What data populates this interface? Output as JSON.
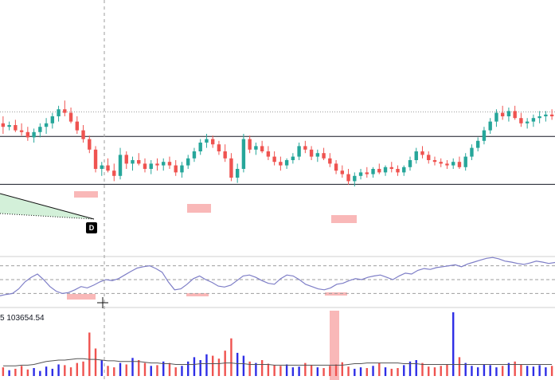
{
  "volume_label": "5  103654.54",
  "drawing_marker": "D",
  "colors": {
    "up": "#26a69a",
    "down": "#ef5350",
    "level_line": "#131722",
    "dotted_line": "#9e9e9e",
    "oscillator": "#7e7ec7",
    "vol_up": "#2e2ee6",
    "vol_down": "#ef5350",
    "vol_ma": "#555555",
    "highlight": "#f7a6a6",
    "wedge_fill": "#c8ecd0"
  },
  "chart_data": {
    "type": "candlestick",
    "title": "",
    "price": {
      "ylim": [
        0,
        100
      ],
      "levels": [
        {
          "style": "solid",
          "value": 58.5
        },
        {
          "style": "solid",
          "value": 31.2
        },
        {
          "style": "dotted",
          "value": 72.5
        }
      ],
      "candles": [
        [
          66,
          70,
          60,
          64
        ],
        [
          64,
          67,
          62,
          65
        ],
        [
          65,
          68,
          61,
          62
        ],
        [
          62,
          66,
          59,
          61
        ],
        [
          61,
          64,
          56,
          58
        ],
        [
          58,
          63,
          55,
          61
        ],
        [
          61,
          66,
          58,
          64
        ],
        [
          64,
          69,
          60,
          66
        ],
        [
          66,
          72,
          63,
          70
        ],
        [
          70,
          76,
          67,
          74
        ],
        [
          74,
          79,
          70,
          72
        ],
        [
          72,
          75,
          66,
          67
        ],
        [
          67,
          70,
          60,
          62
        ],
        [
          62,
          65,
          55,
          57
        ],
        [
          57,
          59,
          49,
          51
        ],
        [
          51,
          53,
          38,
          40
        ],
        [
          40,
          44,
          36,
          42
        ],
        [
          42,
          46,
          38,
          39
        ],
        [
          39,
          43,
          33,
          36
        ],
        [
          36,
          52,
          34,
          48
        ],
        [
          48,
          50,
          40,
          43
        ],
        [
          43,
          47,
          39,
          45
        ],
        [
          45,
          49,
          42,
          43
        ],
        [
          43,
          46,
          38,
          40
        ],
        [
          40,
          45,
          37,
          43
        ],
        [
          43,
          46,
          39,
          42
        ],
        [
          42,
          46,
          39,
          44
        ],
        [
          44,
          47,
          40,
          42
        ],
        [
          42,
          45,
          36,
          38
        ],
        [
          38,
          44,
          35,
          42
        ],
        [
          42,
          48,
          40,
          46
        ],
        [
          46,
          52,
          44,
          50
        ],
        [
          50,
          57,
          48,
          55
        ],
        [
          55,
          60,
          52,
          57
        ],
        [
          57,
          59,
          52,
          54
        ],
        [
          54,
          56,
          48,
          50
        ],
        [
          50,
          54,
          44,
          46
        ],
        [
          46,
          49,
          33,
          35
        ],
        [
          35,
          43,
          32,
          40
        ],
        [
          40,
          60,
          38,
          57
        ],
        [
          57,
          59,
          49,
          51
        ],
        [
          51,
          55,
          48,
          53
        ],
        [
          53,
          56,
          49,
          50
        ],
        [
          50,
          53,
          45,
          47
        ],
        [
          47,
          50,
          42,
          44
        ],
        [
          44,
          47,
          39,
          42
        ],
        [
          42,
          46,
          40,
          45
        ],
        [
          45,
          49,
          43,
          47
        ],
        [
          47,
          55,
          45,
          53
        ],
        [
          53,
          56,
          49,
          51
        ],
        [
          51,
          53,
          45,
          47
        ],
        [
          47,
          51,
          44,
          49
        ],
        [
          49,
          52,
          45,
          46
        ],
        [
          46,
          49,
          41,
          43
        ],
        [
          43,
          45,
          37,
          39
        ],
        [
          39,
          42,
          35,
          37
        ],
        [
          37,
          40,
          31,
          33
        ],
        [
          33,
          38,
          30,
          36
        ],
        [
          36,
          40,
          34,
          38
        ],
        [
          38,
          41,
          35,
          37
        ],
        [
          37,
          41,
          35,
          40
        ],
        [
          40,
          43,
          37,
          38
        ],
        [
          38,
          42,
          36,
          41
        ],
        [
          41,
          44,
          38,
          40
        ],
        [
          40,
          42,
          36,
          38
        ],
        [
          38,
          42,
          36,
          41
        ],
        [
          41,
          47,
          39,
          45
        ],
        [
          45,
          52,
          43,
          50
        ],
        [
          50,
          53,
          46,
          48
        ],
        [
          48,
          50,
          43,
          45
        ],
        [
          45,
          47,
          42,
          44
        ],
        [
          44,
          46,
          41,
          43
        ],
        [
          43,
          45,
          40,
          42
        ],
        [
          42,
          46,
          40,
          44
        ],
        [
          44,
          47,
          40,
          41
        ],
        [
          41,
          49,
          39,
          47
        ],
        [
          47,
          54,
          45,
          52
        ],
        [
          52,
          58,
          50,
          56
        ],
        [
          56,
          64,
          54,
          62
        ],
        [
          62,
          69,
          60,
          67
        ],
        [
          67,
          74,
          64,
          72
        ],
        [
          72,
          76,
          68,
          70
        ],
        [
          70,
          75,
          67,
          73
        ],
        [
          73,
          76,
          68,
          69
        ],
        [
          69,
          72,
          64,
          66
        ],
        [
          66,
          69,
          63,
          67
        ],
        [
          67,
          71,
          64,
          69
        ],
        [
          69,
          73,
          66,
          70
        ],
        [
          70,
          73,
          67,
          71
        ],
        [
          71,
          74,
          68,
          70
        ]
      ]
    },
    "oscillator": {
      "ylim": [
        0,
        100
      ],
      "levels": [
        80,
        50,
        20
      ],
      "values": [
        15,
        18,
        20,
        30,
        45,
        55,
        62,
        50,
        35,
        25,
        20,
        22,
        28,
        35,
        32,
        38,
        45,
        50,
        48,
        52,
        60,
        68,
        75,
        78,
        80,
        74,
        66,
        45,
        28,
        30,
        40,
        52,
        58,
        50,
        44,
        36,
        34,
        38,
        48,
        58,
        60,
        55,
        48,
        42,
        40,
        52,
        60,
        58,
        50,
        40,
        35,
        30,
        28,
        32,
        40,
        42,
        48,
        52,
        50,
        55,
        58,
        60,
        55,
        50,
        58,
        64,
        62,
        70,
        74,
        72,
        76,
        78,
        80,
        82,
        78,
        84,
        88,
        92,
        96,
        98,
        95,
        90,
        88,
        85,
        83,
        86,
        90,
        88,
        85,
        87
      ]
    },
    "volume": {
      "values": [
        12,
        8,
        10,
        14,
        9,
        11,
        7,
        13,
        10,
        16,
        15,
        12,
        18,
        20,
        60,
        38,
        22,
        14,
        12,
        18,
        16,
        25,
        22,
        18,
        14,
        15,
        20,
        18,
        12,
        14,
        20,
        26,
        22,
        30,
        28,
        24,
        35,
        52,
        32,
        28,
        20,
        18,
        22,
        17,
        15,
        14,
        16,
        12,
        13,
        18,
        15,
        12,
        11,
        14,
        16,
        19,
        13,
        10,
        12,
        11,
        14,
        18,
        12,
        10,
        11,
        15,
        20,
        22,
        18,
        13,
        12,
        14,
        16,
        88,
        26,
        18,
        14,
        12,
        16,
        15,
        12,
        14,
        18,
        20,
        16,
        14,
        13,
        15,
        12,
        14
      ],
      "ma": [
        14,
        14,
        14,
        15,
        15,
        16,
        18,
        20,
        21,
        22,
        22,
        23,
        24,
        24,
        23,
        23,
        22,
        21,
        21,
        20,
        20,
        20,
        20,
        19,
        18,
        18,
        17,
        17,
        16,
        16,
        16,
        16,
        17,
        17,
        17,
        17,
        18,
        18,
        17,
        17,
        16,
        16,
        16,
        16,
        15,
        15,
        15,
        15,
        15,
        15,
        15,
        15,
        15,
        15,
        15,
        15,
        16,
        17,
        17,
        18,
        18,
        18,
        18,
        18,
        18,
        17,
        17,
        17,
        16,
        16,
        16,
        16,
        16,
        16,
        16,
        16,
        16,
        16,
        16,
        16,
        16,
        16,
        16,
        16,
        16,
        16,
        16,
        16,
        16,
        16
      ]
    }
  }
}
